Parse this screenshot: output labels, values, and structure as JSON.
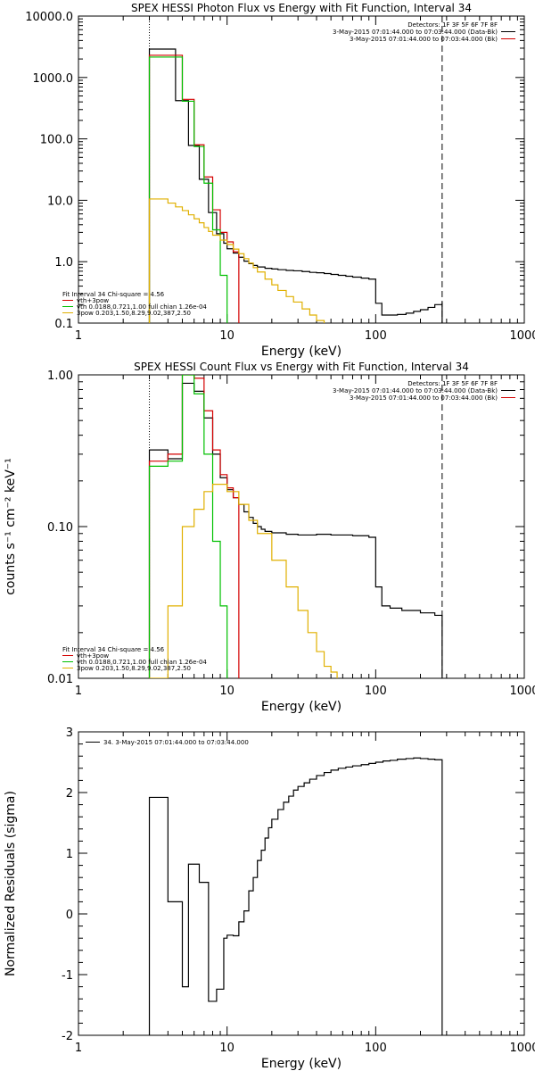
{
  "chart_data": [
    {
      "type": "line",
      "title": "SPEX HESSI Photon Flux vs Energy with Fit Function, Interval 34",
      "xlabel": "Energy (keV)",
      "ylabel": "",
      "xscale": "log",
      "yscale": "log",
      "xlim": [
        1,
        1000
      ],
      "ylim": [
        0.1,
        10000
      ],
      "xticks": [
        1,
        10,
        100,
        1000
      ],
      "xtick_labels": [
        "1",
        "10",
        "100",
        "1000"
      ],
      "yticks": [
        0.1,
        1,
        10,
        100,
        1000,
        10000
      ],
      "ytick_labels": [
        "0.1",
        "1.0",
        "10.0",
        "100.0",
        "1000.0",
        "10000.0"
      ],
      "vlines": [
        {
          "x": 3.0,
          "style": "dotted"
        },
        {
          "x": 280,
          "style": "dashed"
        }
      ],
      "header": [
        {
          "text": "Detectors: 1F 3F 5F 6F 7F 8F",
          "color": "#000000"
        },
        {
          "text": "3-May-2015 07:01:44.000 to 07:03:44.000 (Data-Bk)",
          "color": "#000000"
        },
        {
          "text": "3-May-2015 07:01:44.000 to 07:03:44.000 (Bk)",
          "color": "#000000"
        }
      ],
      "legend": [
        {
          "text": "Fit Interval 34   Chi-square = 4.56",
          "color": "#000000"
        },
        {
          "text": "vth+3pow",
          "color": "#d40000"
        },
        {
          "text": "vth 0.0188,0.721,1.00  full chian 1.26e-04",
          "color": "#00c000"
        },
        {
          "text": "3pow 0.203,1.50,8.29,9.02,387,2.50",
          "color": "#e0b000"
        }
      ],
      "series": [
        {
          "name": "Data-Bk",
          "color": "#000000",
          "x": [
            3.0,
            3.5,
            4.0,
            4.5,
            5.0,
            5.5,
            6.0,
            6.5,
            7.0,
            7.5,
            8.0,
            8.5,
            9.0,
            9.5,
            10.0,
            11.0,
            12.0,
            13.0,
            14.0,
            15.0,
            16.0,
            18.0,
            20.0,
            22.0,
            25.0,
            28.0,
            32.0,
            36.0,
            40.0,
            45.0,
            50.0,
            56.0,
            63.0,
            70.0,
            80.0,
            90.0,
            100.0,
            110.0,
            125.0,
            140.0,
            160.0,
            180.0,
            200.0,
            225.0,
            250.0,
            280.0
          ],
          "values": [
            2900,
            2900,
            2900,
            420,
            420,
            78,
            78,
            22,
            22,
            6.3,
            6.3,
            2.85,
            2.85,
            2.0,
            1.62,
            1.38,
            1.18,
            1.02,
            0.93,
            0.87,
            0.82,
            0.78,
            0.76,
            0.74,
            0.72,
            0.71,
            0.69,
            0.67,
            0.66,
            0.64,
            0.62,
            0.6,
            0.58,
            0.56,
            0.54,
            0.52,
            0.21,
            0.135,
            0.135,
            0.138,
            0.145,
            0.155,
            0.165,
            0.18,
            0.2,
            0.22
          ]
        },
        {
          "name": "vth+3pow",
          "color": "#d40000",
          "x": [
            3.0,
            4.0,
            5.0,
            6.0,
            7.0,
            8.0,
            9.0,
            10.0,
            11.0,
            12.0
          ],
          "values": [
            2300,
            2300,
            440,
            80,
            24,
            7.0,
            3.0,
            2.1,
            1.45,
            1.2
          ]
        },
        {
          "name": "vth",
          "color": "#00c000",
          "x": [
            3.0,
            4.0,
            5.0,
            6.0,
            7.0,
            8.0,
            9.0,
            10.0
          ],
          "values": [
            2150,
            2150,
            410,
            75,
            19,
            3.3,
            0.6,
            0.1
          ]
        },
        {
          "name": "3pow",
          "color": "#e0b000",
          "x": [
            3.0,
            3.5,
            4.0,
            4.5,
            5.0,
            5.5,
            6.0,
            6.5,
            7.0,
            7.5,
            8.0,
            9.0,
            10.0,
            11.0,
            12.0,
            13.0,
            14.0,
            15.0,
            16.0,
            18.0,
            20.0,
            22.0,
            25.0,
            28.0,
            32.0,
            36.0,
            40.0,
            45.0
          ],
          "values": [
            10.5,
            10.5,
            9.0,
            7.8,
            6.8,
            5.8,
            5.0,
            4.3,
            3.6,
            3.1,
            2.7,
            2.25,
            1.9,
            1.6,
            1.35,
            1.12,
            0.95,
            0.8,
            0.68,
            0.52,
            0.42,
            0.34,
            0.27,
            0.22,
            0.17,
            0.135,
            0.11,
            0.1
          ]
        }
      ]
    },
    {
      "type": "line",
      "title": "SPEX HESSI Count Flux vs Energy with Fit Function, Interval 34",
      "xlabel": "Energy (keV)",
      "ylabel": "counts s⁻¹ cm⁻² keV⁻¹",
      "xscale": "log",
      "yscale": "log",
      "xlim": [
        1,
        1000
      ],
      "ylim": [
        0.01,
        1.0
      ],
      "xticks": [
        1,
        10,
        100,
        1000
      ],
      "xtick_labels": [
        "1",
        "10",
        "100",
        "1000"
      ],
      "yticks": [
        0.01,
        0.1,
        1.0
      ],
      "ytick_labels": [
        "0.01",
        "0.10",
        "1.00"
      ],
      "vlines": [
        {
          "x": 3.0,
          "style": "dotted"
        },
        {
          "x": 280,
          "style": "dashed"
        }
      ],
      "header": [
        {
          "text": "Detectors: 1F 3F 5F 6F 7F 8F",
          "color": "#000000"
        },
        {
          "text": "3-May-2015 07:01:44.000 to 07:03:44.000 (Data-Bk)",
          "color": "#000000"
        },
        {
          "text": "3-May-2015 07:01:44.000 to 07:03:44.000 (Bk)",
          "color": "#000000"
        }
      ],
      "legend": [
        {
          "text": "Fit Interval 34   Chi-square = 4.56",
          "color": "#000000"
        },
        {
          "text": "vth+3pow",
          "color": "#d40000"
        },
        {
          "text": "vth 0.0188,0.721,1.00  full chian 1.26e-04",
          "color": "#00c000"
        },
        {
          "text": "3pow 0.203,1.50,8.29,9.02,387,2.50",
          "color": "#e0b000"
        }
      ],
      "series": [
        {
          "name": "Data-Bk",
          "color": "#000000",
          "x": [
            3.0,
            4.0,
            5.0,
            6.0,
            7.0,
            8.0,
            9.0,
            10.0,
            11.0,
            12.0,
            13.0,
            14.0,
            15.0,
            16.0,
            17.0,
            18.0,
            20.0,
            25.0,
            30.0,
            40.0,
            50.0,
            60.0,
            70.0,
            80.0,
            90.0,
            100.0,
            110.0,
            125.0,
            150.0,
            200.0,
            250.0,
            280.0
          ],
          "values": [
            0.32,
            0.28,
            0.88,
            0.78,
            0.52,
            0.3,
            0.21,
            0.175,
            0.155,
            0.14,
            0.125,
            0.115,
            0.105,
            0.1,
            0.096,
            0.093,
            0.091,
            0.089,
            0.088,
            0.089,
            0.088,
            0.088,
            0.087,
            0.087,
            0.085,
            0.04,
            0.03,
            0.029,
            0.028,
            0.027,
            0.026,
            0.026
          ]
        },
        {
          "name": "vth+3pow",
          "color": "#d40000",
          "x": [
            3.0,
            4.0,
            5.0,
            6.0,
            7.0,
            8.0,
            9.0,
            10.0,
            11.0,
            12.0
          ],
          "values": [
            0.27,
            0.3,
            1.0,
            0.95,
            0.58,
            0.32,
            0.22,
            0.18,
            0.155,
            0.14
          ]
        },
        {
          "name": "vth",
          "color": "#00c000",
          "x": [
            3.0,
            4.0,
            5.0,
            6.0,
            7.0,
            8.0,
            9.0,
            10.0
          ],
          "values": [
            0.25,
            0.27,
            1.0,
            0.75,
            0.3,
            0.08,
            0.03,
            0.01
          ]
        },
        {
          "name": "3pow",
          "color": "#e0b000",
          "x": [
            3.0,
            4.0,
            5.0,
            6.0,
            7.0,
            8.0,
            9.0,
            10.0,
            12.0,
            14.0,
            16.0,
            20.0,
            25.0,
            30.0,
            35.0,
            40.0,
            45.0,
            50.0,
            55.0
          ],
          "values": [
            0.01,
            0.03,
            0.1,
            0.13,
            0.17,
            0.19,
            0.19,
            0.17,
            0.14,
            0.11,
            0.09,
            0.06,
            0.04,
            0.028,
            0.02,
            0.015,
            0.012,
            0.011,
            0.01
          ]
        }
      ]
    },
    {
      "type": "line",
      "title": "",
      "xlabel": "Energy (keV)",
      "ylabel": "Normalized Residuals (sigma)",
      "xscale": "log",
      "yscale": "linear",
      "xlim": [
        1,
        1000
      ],
      "ylim": [
        -2,
        3
      ],
      "xticks": [
        1,
        10,
        100,
        1000
      ],
      "xtick_labels": [
        "1",
        "10",
        "100",
        "1000"
      ],
      "yticks": [
        -2,
        -1,
        0,
        1,
        2,
        3
      ],
      "ytick_labels": [
        "-2",
        "-1",
        "0",
        "1",
        "2",
        "3"
      ],
      "vlines": [],
      "header": [],
      "legend": [
        {
          "text": "34.  3-May-2015 07:01:44.000 to 07:03:44.000",
          "color": "#000000"
        }
      ],
      "series": [
        {
          "name": "Residuals",
          "color": "#000000",
          "x": [
            3.0,
            4.0,
            5.0,
            5.5,
            6.5,
            7.5,
            8.5,
            9.5,
            10.0,
            11.0,
            12.0,
            13.0,
            14.0,
            15.0,
            16.0,
            17.0,
            18.0,
            19.0,
            20.0,
            22.0,
            24.0,
            26.0,
            28.0,
            30.0,
            33.0,
            36.0,
            40.0,
            45.0,
            50.0,
            56.0,
            63.0,
            70.0,
            80.0,
            90.0,
            100.0,
            112.0,
            125.0,
            140.0,
            160.0,
            180.0,
            200.0,
            225.0,
            250.0,
            280.0
          ],
          "values": [
            1.92,
            0.2,
            -1.2,
            0.82,
            0.52,
            -1.44,
            -1.24,
            -0.4,
            -0.35,
            -0.36,
            -0.13,
            0.05,
            0.38,
            0.6,
            0.88,
            1.05,
            1.25,
            1.42,
            1.56,
            1.72,
            1.84,
            1.94,
            2.04,
            2.1,
            2.16,
            2.22,
            2.28,
            2.33,
            2.37,
            2.4,
            2.42,
            2.44,
            2.46,
            2.48,
            2.5,
            2.52,
            2.53,
            2.55,
            2.56,
            2.57,
            2.56,
            2.55,
            2.54,
            2.53
          ]
        }
      ]
    }
  ]
}
